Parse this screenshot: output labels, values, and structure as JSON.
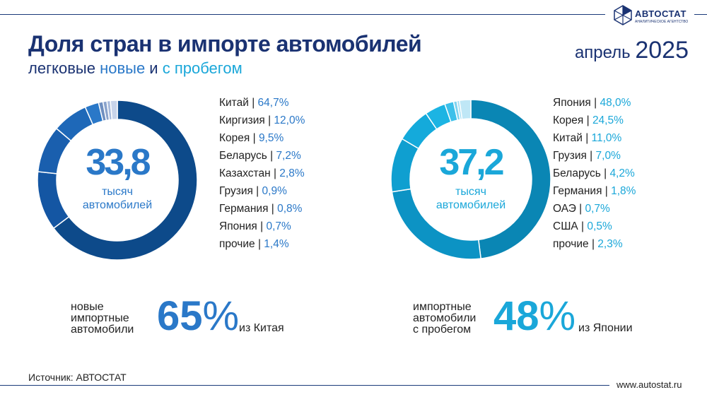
{
  "header": {
    "title": "Доля стран в импорте автомобилей",
    "subtitle_pre": "легковые ",
    "subtitle_new": "новые",
    "subtitle_mid": " и ",
    "subtitle_used": "с пробегом",
    "date_month": "апрель ",
    "date_year": "2025",
    "logo_text": "АВТОСТАТ",
    "logo_sub": "АНАЛИТИЧЕСКОЕ АГЕНТСТВО"
  },
  "chart_data": [
    {
      "type": "pie",
      "variant": "donut",
      "center_value": "33,8",
      "center_label_1": "тысяч",
      "center_label_2": "автомобилей",
      "unit": "%",
      "categories": [
        "Китай",
        "Киргизия",
        "Корея",
        "Беларусь",
        "Казахстан",
        "Грузия",
        "Германия",
        "Япония",
        "прочие"
      ],
      "values": [
        64.7,
        12.0,
        9.5,
        7.2,
        2.8,
        0.9,
        0.8,
        0.7,
        1.4
      ],
      "labels": [
        "64,7%",
        "12,0%",
        "9,5%",
        "7,2%",
        "2,8%",
        "0,9%",
        "0,8%",
        "0,7%",
        "1,4%"
      ],
      "colors": [
        "#0d4a8a",
        "#1456a3",
        "#1a5fae",
        "#1e68b8",
        "#2a78c8",
        "#6f8fc0",
        "#8aa3cc",
        "#a8bbdc",
        "#c8d4ea"
      ],
      "accent": "#2a78c8",
      "legend_placement": "right"
    },
    {
      "type": "pie",
      "variant": "donut",
      "center_value": "37,2",
      "center_label_1": "тысяч",
      "center_label_2": "автомобилей",
      "unit": "%",
      "categories": [
        "Япония",
        "Корея",
        "Китай",
        "Грузия",
        "Беларусь",
        "Германия",
        "ОАЭ",
        "США",
        "прочие"
      ],
      "values": [
        48.0,
        24.5,
        11.0,
        7.0,
        4.2,
        1.8,
        0.7,
        0.5,
        2.3
      ],
      "labels": [
        "48,0%",
        "24,5%",
        "11,0%",
        "7,0%",
        "4,2%",
        "1,8%",
        "0,7%",
        "0,5%",
        "2,3%"
      ],
      "colors": [
        "#0a86b4",
        "#0c93c4",
        "#0f9fd0",
        "#14aadb",
        "#1cb4e3",
        "#3dc0ea",
        "#7fd3f0",
        "#a3def3",
        "#bfe7f6"
      ],
      "accent": "#1aa7d9",
      "legend_placement": "right"
    }
  ],
  "summary": [
    {
      "label_1": "новые",
      "label_2": "импортные",
      "label_3": "автомобили",
      "value": "65",
      "pct": "%",
      "from": "из Китая"
    },
    {
      "label_1": "импортные",
      "label_2": "автомобили",
      "label_3": "с пробегом",
      "value": "48",
      "pct": "%",
      "from": "из Японии"
    }
  ],
  "footer": {
    "source": "Источник: АВТОСТАТ",
    "site": "www.autostat.ru"
  }
}
